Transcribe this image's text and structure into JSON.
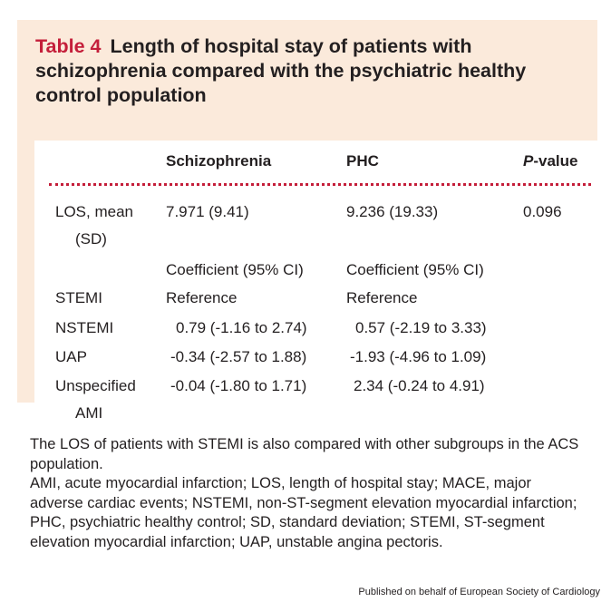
{
  "caption": {
    "label": "Table 4",
    "title": "Length of hospital stay of patients with schizophrenia compared with the psychiatric healthy control population"
  },
  "table": {
    "headers": [
      "Schizophrenia",
      "PHC",
      "P",
      "-value"
    ],
    "los_row": {
      "label_line1": "LOS, mean",
      "label_line2": "(SD)",
      "schizophrenia": "7.971 (9.41)",
      "phc": "9.236 (19.33)",
      "p_value": "0.096"
    },
    "coefficient_header": [
      "Coefficient (95% CI)",
      "Coefficient (95% CI)"
    ],
    "rows": [
      {
        "label": "STEMI",
        "schizophrenia": "Reference",
        "phc": "Reference"
      },
      {
        "label": "NSTEMI",
        "schizophrenia": "0.79 (-1.16 to 2.74)",
        "phc": "0.57 (-2.19 to 3.33)"
      },
      {
        "label": "UAP",
        "schizophrenia": "-0.34 (-2.57 to 1.88)",
        "phc": "-1.93 (-4.96 to 1.09)"
      },
      {
        "label": "Unspecified",
        "label_line2": "AMI",
        "schizophrenia": "-0.04 (-1.80 to 1.71)",
        "phc": "2.34 (-0.24 to 4.91)"
      }
    ]
  },
  "footnotes": [
    "The LOS of patients with STEMI is also compared with other subgroups in the ACS population.",
    "AMI, acute myocardial infarction; LOS, length of hospital stay; MACE, major adverse cardiac events; NSTEMI, non-ST-segment elevation myocardial infarction; PHC, psychiatric healthy control; SD, standard deviation; STEMI, ST-segment elevation myocardial infarction; UAP, unstable angina pectoris."
  ],
  "publisher": "Published on behalf of European Society of Cardiology",
  "colors": {
    "accent": "#c41e3a",
    "panel": "#fbeadb",
    "text": "#231f20"
  }
}
